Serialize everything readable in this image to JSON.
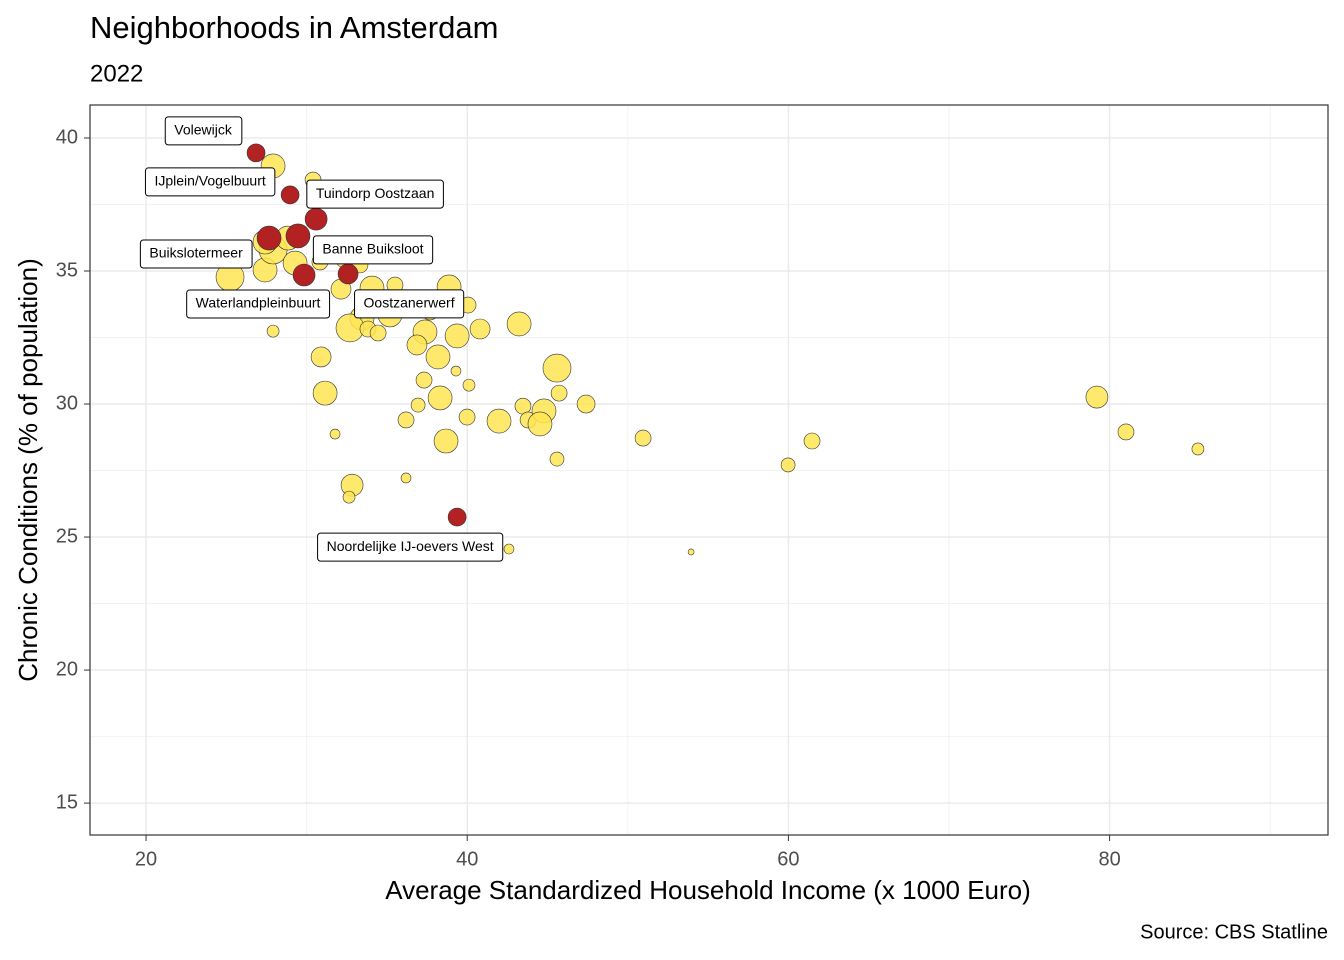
{
  "chart_data": {
    "type": "scatter",
    "title": "Neighborhoods in Amsterdam",
    "subtitle": "2022",
    "x_label": "Average Standardized Household Income (x 1000 Euro)",
    "y_label": "Chronic Conditions (% of population)",
    "caption": "Source: CBS Statline",
    "xlim": [
      16.51,
      93.6
    ],
    "ylim": [
      13.8,
      41.24
    ],
    "xticks": [
      20,
      40,
      60,
      80
    ],
    "yticks": [
      15,
      20,
      25,
      30,
      35,
      40
    ],
    "x_minor_ticks": [
      30,
      50,
      70,
      90
    ],
    "y_minor_ticks": [
      17.5,
      22.5,
      27.5,
      32.5,
      37.5
    ],
    "grid": true,
    "series": [
      {
        "color": "#ffe552",
        "x": [
          27.91,
          30.4,
          25.23,
          27.41,
          27.91,
          27.41,
          28.84,
          29.28,
          30.83,
          32.39,
          33.32,
          32.14,
          34.07,
          34.88,
          35.19,
          33.45,
          32.7,
          33.82,
          34.45,
          27.91,
          38.87,
          40.05,
          37.68,
          37.37,
          39.37,
          40.8,
          43.23,
          36.87,
          38.18,
          39.3,
          40.11,
          37.31,
          45.59,
          45.72,
          47.4,
          30.9,
          31.15,
          38.31,
          36.94,
          36.19,
          39.99,
          43.47,
          43.79,
          41.98,
          44.78,
          44.53,
          50.95,
          38.68,
          31.77,
          45.59,
          61.47,
          59.98,
          79.21,
          81.02,
          85.5,
          32.83,
          32.64,
          36.19,
          42.6,
          53.94,
          34.57,
          35.5
        ],
        "values": [
          38.95,
          38.42,
          34.77,
          35.04,
          35.79,
          36.09,
          36.24,
          35.3,
          35.34,
          35.49,
          35.23,
          34.32,
          34.36,
          33.91,
          33.35,
          33.23,
          32.86,
          32.82,
          32.67,
          32.74,
          34.4,
          33.72,
          33.46,
          32.71,
          32.56,
          32.82,
          33.01,
          32.22,
          31.77,
          31.24,
          30.71,
          30.9,
          31.35,
          30.41,
          30.0,
          31.77,
          30.41,
          30.23,
          29.96,
          29.4,
          29.51,
          29.92,
          29.4,
          29.36,
          29.74,
          29.25,
          28.72,
          28.61,
          28.87,
          27.93,
          28.61,
          27.71,
          30.26,
          28.95,
          28.31,
          26.95,
          26.5,
          27.22,
          24.55,
          24.44,
          33.98,
          34.47
        ],
        "sizes": [
          12,
          8,
          14,
          12,
          14,
          12,
          12,
          12,
          8,
          10,
          8,
          10,
          12,
          10,
          12,
          12,
          14,
          8,
          8,
          6,
          12,
          8,
          8,
          12,
          12,
          10,
          12,
          10,
          12,
          5,
          6,
          8,
          14,
          8,
          9,
          10,
          12,
          12,
          7,
          8,
          8,
          8,
          8,
          12,
          12,
          12,
          8,
          12,
          5,
          7,
          8,
          7,
          11,
          8,
          6,
          11,
          6,
          5,
          5,
          3,
          8,
          8
        ]
      },
      {
        "color": "#b22222",
        "labels": [
          "Volewijck",
          "IJplein/Vogelbuurt",
          "Tuindorp Oostzaan",
          "Banne Buiksloot",
          "Buikslotermeer",
          "Oostzanerwerf",
          "Waterlandpleinbuurt",
          "Noordelijke IJ-oevers West"
        ],
        "x": [
          26.85,
          28.97,
          30.59,
          29.46,
          27.66,
          32.58,
          29.84,
          39.37
        ],
        "values": [
          39.44,
          37.86,
          36.95,
          36.32,
          36.24,
          34.89,
          34.85,
          25.75
        ],
        "sizes": [
          9,
          9,
          11,
          12,
          12,
          10,
          11,
          9
        ]
      }
    ]
  }
}
